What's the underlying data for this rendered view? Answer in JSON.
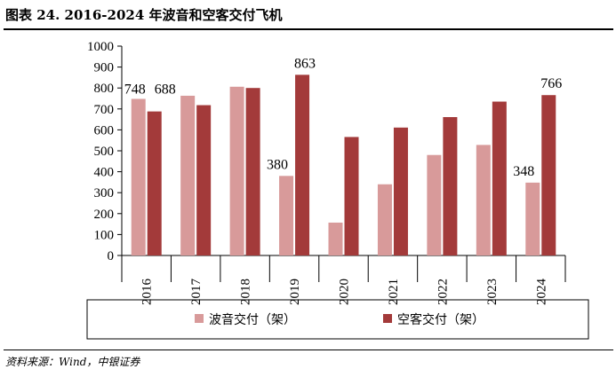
{
  "title": "图表 24. 2016-2024 年波音和空客交付飞机",
  "source": "资料来源：Wind，中银证券",
  "chart_data": {
    "type": "bar",
    "categories": [
      "2016",
      "2017",
      "2018",
      "2019",
      "2020",
      "2021",
      "2022",
      "2023",
      "2024"
    ],
    "series": [
      {
        "name": "波音交付（架）",
        "color": "#d89a9a",
        "values": [
          748,
          763,
          806,
          380,
          157,
          340,
          480,
          528,
          348
        ]
      },
      {
        "name": "空客交付（架）",
        "color": "#a33a3a",
        "values": [
          688,
          718,
          800,
          863,
          566,
          611,
          661,
          735,
          766
        ]
      }
    ],
    "data_labels": [
      {
        "series": 0,
        "index": 0,
        "text": "748"
      },
      {
        "series": 1,
        "index": 0,
        "text": "688"
      },
      {
        "series": 0,
        "index": 3,
        "text": "380"
      },
      {
        "series": 1,
        "index": 3,
        "text": "863"
      },
      {
        "series": 0,
        "index": 8,
        "text": "348"
      },
      {
        "series": 1,
        "index": 8,
        "text": "766"
      }
    ],
    "ylim": [
      0,
      1000
    ],
    "yticks": [
      0,
      100,
      200,
      300,
      400,
      500,
      600,
      700,
      800,
      900,
      1000
    ],
    "grid": false,
    "legend_position": "bottom"
  }
}
